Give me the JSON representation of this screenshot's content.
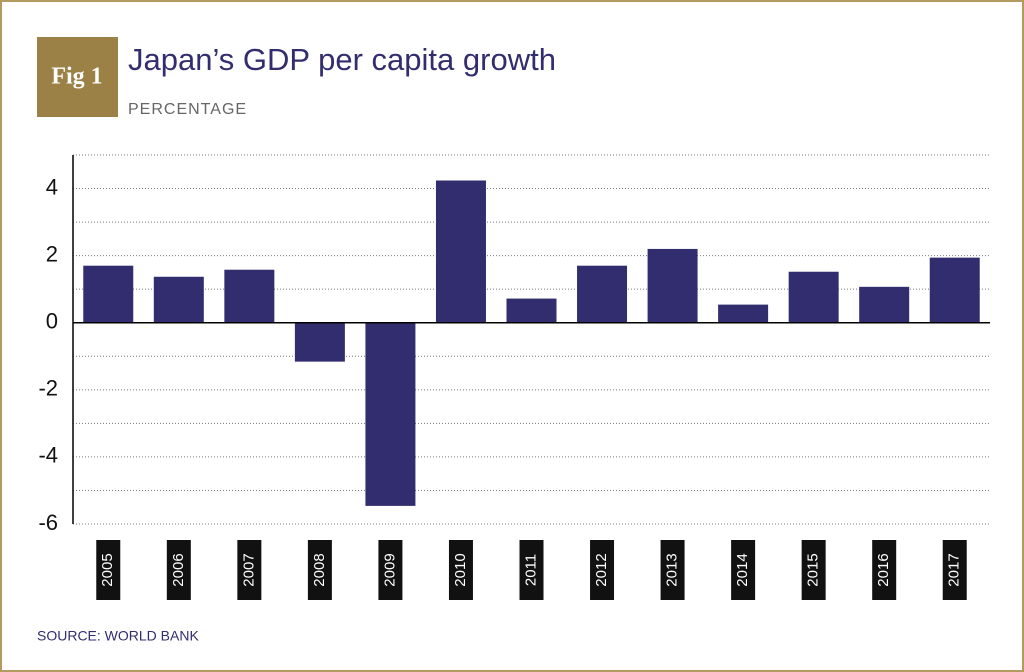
{
  "chart_data": {
    "type": "bar",
    "badge": "Fig 1",
    "title": "Japan’s GDP per capita growth",
    "subtitle": "PERCENTAGE",
    "source": "SOURCE: WORLD BANK",
    "categories": [
      "2005",
      "2006",
      "2007",
      "2008",
      "2009",
      "2010",
      "2011",
      "2012",
      "2013",
      "2014",
      "2015",
      "2016",
      "2017"
    ],
    "values": [
      1.7,
      1.37,
      1.58,
      -1.16,
      -5.46,
      4.24,
      0.72,
      1.7,
      2.2,
      0.54,
      1.52,
      1.07,
      1.94
    ],
    "color": "#322d6e",
    "ylim": [
      -6,
      5
    ],
    "yticks": [
      -6,
      -4,
      -2,
      0,
      2,
      4
    ],
    "minor_yticks": [
      -5,
      -3,
      -1,
      1,
      3,
      5
    ],
    "grid": true
  }
}
